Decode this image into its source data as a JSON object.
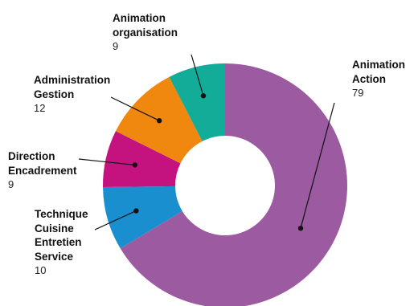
{
  "chart_data": {
    "type": "pie",
    "donut": true,
    "title": "",
    "slices": [
      {
        "label": "Animation\nAction",
        "value": 79,
        "value_text": "79",
        "color": "#9c5aa0"
      },
      {
        "label": "Technique\nCuisine\nEntretien\nService",
        "value": 10,
        "value_text": "10",
        "color": "#1a8fd0"
      },
      {
        "label": "Direction\nEncadrement",
        "value": 9,
        "value_text": "9",
        "color": "#c4127e"
      },
      {
        "label": "Administration\nGestion",
        "value": 12,
        "value_text": "12",
        "color": "#f0870f"
      },
      {
        "label": "Animation\norganisation",
        "value": 9,
        "value_text": "9",
        "color": "#12ac98"
      }
    ]
  }
}
